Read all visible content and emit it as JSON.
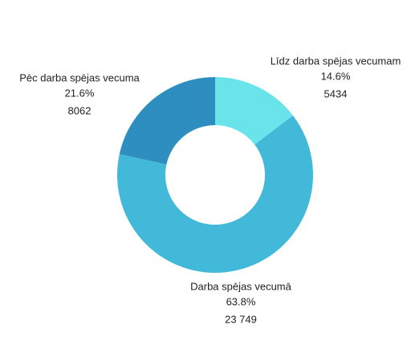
{
  "chart_data": {
    "type": "donut",
    "categories": [
      "Līdz darba spējas vecumam",
      "Darba spējas vecumā",
      "Pēc darba spējas vecuma"
    ],
    "values": [
      14.6,
      63.8,
      21.6
    ],
    "value_labels": [
      "14.6%",
      "63.8%",
      "21.6%"
    ],
    "counts": [
      5434,
      23749,
      8062
    ],
    "count_labels": [
      "5434",
      "23 749",
      "8062"
    ],
    "colors": [
      "#6ae4ea",
      "#43b9d9",
      "#2d8ebf"
    ]
  }
}
